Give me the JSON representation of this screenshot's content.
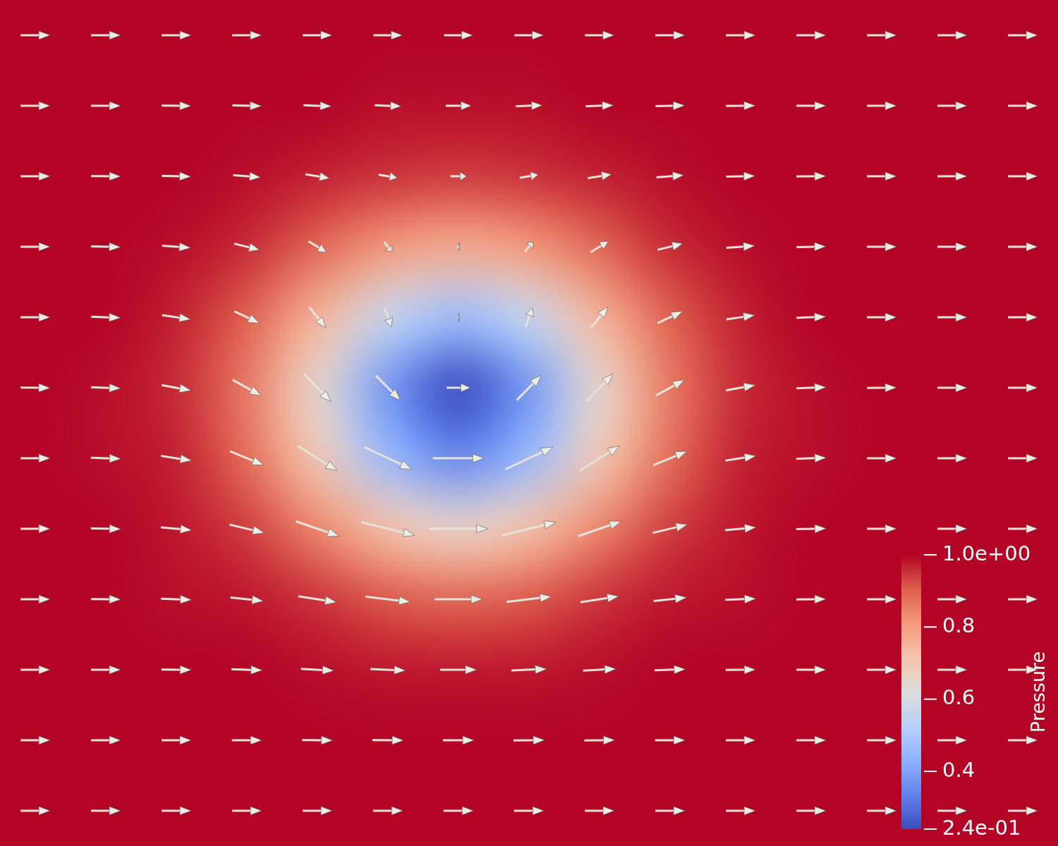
{
  "chart_data": {
    "type": "heatmap",
    "tick_labels": false,
    "grid": false,
    "colorbar": {
      "title": "Pressure",
      "range": [
        0.24,
        1.0
      ],
      "ticks": [
        {
          "value": 1.0,
          "label": "1.0e+00"
        },
        0.8,
        0.6,
        0.4,
        {
          "value": 0.24,
          "label": "2.4e-01"
        }
      ]
    },
    "cells": [
      [
        1,
        1,
        1,
        1,
        1,
        1,
        1,
        1,
        1,
        1,
        1,
        1,
        1,
        1,
        1
      ],
      [
        1,
        1,
        1,
        1,
        1,
        0.99,
        0.99,
        0.99,
        1,
        1,
        1,
        1,
        1,
        1,
        1
      ],
      [
        1,
        1,
        1,
        0.99,
        0.97,
        0.95,
        0.94,
        0.95,
        0.97,
        0.99,
        1,
        1,
        1,
        1,
        1
      ],
      [
        1,
        1,
        0.99,
        0.96,
        0.89,
        0.81,
        0.77,
        0.81,
        0.89,
        0.96,
        0.99,
        1,
        1,
        1,
        1
      ],
      [
        1,
        1,
        0.97,
        0.9,
        0.75,
        0.56,
        0.47,
        0.56,
        0.75,
        0.9,
        0.97,
        1,
        1,
        1,
        1
      ],
      [
        1,
        0.99,
        0.96,
        0.86,
        0.65,
        0.38,
        0.24,
        0.38,
        0.65,
        0.86,
        0.96,
        0.99,
        1,
        1,
        1
      ],
      [
        1,
        0.99,
        0.97,
        0.88,
        0.7,
        0.46,
        0.35,
        0.46,
        0.7,
        0.88,
        0.97,
        0.99,
        1,
        1,
        1
      ],
      [
        1,
        1,
        0.98,
        0.94,
        0.84,
        0.72,
        0.66,
        0.72,
        0.84,
        0.94,
        0.98,
        1,
        1,
        1,
        1
      ],
      [
        1,
        1,
        0.99,
        0.98,
        0.95,
        0.91,
        0.89,
        0.91,
        0.95,
        0.98,
        0.99,
        1,
        1,
        1,
        1
      ],
      [
        1,
        1,
        1,
        1,
        0.99,
        0.98,
        0.98,
        0.98,
        0.99,
        1,
        1,
        1,
        1,
        1,
        1
      ],
      [
        1,
        1,
        1,
        1,
        1,
        1,
        1,
        1,
        1,
        1,
        1,
        1,
        1,
        1,
        1
      ],
      [
        1,
        1,
        1,
        1,
        1,
        1,
        1,
        1,
        1,
        1,
        1,
        1,
        1,
        1,
        1
      ]
    ],
    "vectors": {
      "u": [
        [
          1,
          1,
          1,
          1,
          0.99,
          0.98,
          0.97,
          0.98,
          0.99,
          1,
          1,
          1,
          1,
          1,
          1
        ],
        [
          1,
          1,
          0.99,
          0.98,
          0.94,
          0.89,
          0.86,
          0.89,
          0.94,
          0.98,
          0.99,
          1,
          1,
          1,
          1
        ],
        [
          1,
          1,
          0.98,
          0.92,
          0.8,
          0.63,
          0.55,
          0.63,
          0.8,
          0.92,
          0.98,
          1,
          1,
          1,
          1
        ],
        [
          1,
          0.99,
          0.96,
          0.85,
          0.6,
          0.27,
          0.12,
          0.27,
          0.6,
          0.85,
          0.96,
          0.99,
          1,
          1,
          1
        ],
        [
          1,
          0.99,
          0.96,
          0.84,
          0.57,
          0.23,
          0.07,
          0.23,
          0.57,
          0.84,
          0.96,
          0.99,
          1,
          1,
          1
        ],
        [
          1,
          1,
          0.99,
          0.96,
          0.91,
          0.83,
          0.8,
          0.83,
          0.91,
          0.96,
          0.99,
          1,
          1,
          1,
          1
        ],
        [
          1,
          1.01,
          1.03,
          1.13,
          1.33,
          1.6,
          1.73,
          1.6,
          1.33,
          1.13,
          1.03,
          1.01,
          1,
          1,
          1
        ],
        [
          1,
          1.01,
          1.04,
          1.17,
          1.45,
          1.81,
          1.98,
          1.81,
          1.45,
          1.17,
          1.04,
          1.01,
          1,
          1,
          1
        ],
        [
          1,
          1,
          1.03,
          1.11,
          1.29,
          1.51,
          1.62,
          1.51,
          1.29,
          1.11,
          1.03,
          1,
          1,
          1,
          1
        ],
        [
          1,
          1,
          1.01,
          1.04,
          1.11,
          1.19,
          1.23,
          1.19,
          1.11,
          1.04,
          1.01,
          1,
          1,
          1,
          1
        ],
        [
          1,
          1,
          1,
          1.01,
          1.03,
          1.05,
          1.05,
          1.05,
          1.03,
          1.01,
          1,
          1,
          1,
          1,
          1
        ],
        [
          1,
          1,
          1,
          1,
          1,
          1.01,
          1.01,
          1.01,
          1,
          1,
          1,
          1,
          1,
          1,
          1
        ]
      ],
      "v": [
        [
          0,
          0,
          0,
          0,
          0,
          0,
          0,
          0,
          0,
          0,
          0,
          0,
          0,
          0,
          0
        ],
        [
          0,
          0,
          -0.01,
          -0.02,
          -0.03,
          -0.03,
          0,
          0.03,
          0.03,
          0.02,
          0.01,
          0,
          0,
          0,
          0
        ],
        [
          0,
          -0.01,
          -0.02,
          -0.07,
          -0.13,
          -0.11,
          0,
          0.11,
          0.13,
          0.07,
          0.02,
          0.01,
          0,
          0,
          0
        ],
        [
          0,
          -0.02,
          -0.07,
          -0.21,
          -0.37,
          -0.33,
          0,
          0.33,
          0.37,
          0.21,
          0.07,
          0.02,
          0,
          0,
          0
        ],
        [
          0,
          -0.03,
          -0.14,
          -0.4,
          -0.71,
          -0.64,
          0,
          0.64,
          0.71,
          0.4,
          0.14,
          0.03,
          0,
          0,
          0
        ],
        [
          -0.01,
          -0.04,
          -0.18,
          -0.53,
          -0.94,
          -0.84,
          0,
          0.84,
          0.94,
          0.53,
          0.18,
          0.04,
          0.01,
          0,
          0
        ],
        [
          0,
          -0.03,
          -0.16,
          -0.47,
          -0.83,
          -0.75,
          0,
          0.75,
          0.83,
          0.47,
          0.16,
          0.03,
          0,
          0,
          0
        ],
        [
          0,
          -0.02,
          -0.1,
          -0.28,
          -0.5,
          -0.45,
          0,
          0.45,
          0.5,
          0.28,
          0.1,
          0.02,
          0,
          0,
          0
        ],
        [
          0,
          -0.01,
          -0.04,
          -0.12,
          -0.2,
          -0.18,
          0,
          0.18,
          0.2,
          0.12,
          0.04,
          0.01,
          0,
          0,
          0
        ],
        [
          0,
          0,
          -0.01,
          -0.03,
          -0.06,
          -0.05,
          0,
          0.05,
          0.06,
          0.03,
          0.01,
          0,
          0,
          0,
          0
        ],
        [
          0,
          0,
          0,
          0,
          -0.01,
          -0.01,
          0,
          0.01,
          0.01,
          0,
          0,
          0,
          0,
          0,
          0
        ],
        [
          0,
          0,
          0,
          0,
          0,
          0,
          0,
          0,
          0,
          0,
          0,
          0,
          0,
          0,
          0
        ]
      ]
    }
  }
}
